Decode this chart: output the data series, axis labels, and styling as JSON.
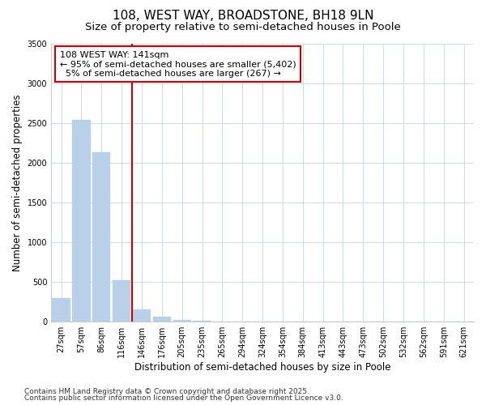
{
  "title1": "108, WEST WAY, BROADSTONE, BH18 9LN",
  "title2": "Size of property relative to semi-detached houses in Poole",
  "xlabel": "Distribution of semi-detached houses by size in Poole",
  "ylabel": "Number of semi-detached properties",
  "categories": [
    "27sqm",
    "57sqm",
    "86sqm",
    "116sqm",
    "146sqm",
    "176sqm",
    "205sqm",
    "235sqm",
    "265sqm",
    "294sqm",
    "324sqm",
    "354sqm",
    "384sqm",
    "413sqm",
    "443sqm",
    "473sqm",
    "502sqm",
    "532sqm",
    "562sqm",
    "591sqm",
    "621sqm"
  ],
  "values": [
    300,
    2540,
    2130,
    520,
    150,
    60,
    20,
    8,
    3,
    1,
    1,
    0,
    0,
    0,
    0,
    0,
    0,
    0,
    0,
    0,
    0
  ],
  "bar_color": "#b8d0e8",
  "bar_edgecolor": "#b8d0e8",
  "vline_x": 3.5,
  "vline_color": "#cc0000",
  "annotation_line1": "108 WEST WAY: 141sqm",
  "annotation_line2": "← 95% of semi-detached houses are smaller (5,402)",
  "annotation_line3": "  5% of semi-detached houses are larger (267) →",
  "annotation_box_color": "#cc0000",
  "ylim": [
    0,
    3500
  ],
  "yticks": [
    0,
    500,
    1000,
    1500,
    2000,
    2500,
    3000,
    3500
  ],
  "background_color": "#ffffff",
  "plot_bg_color": "#ffffff",
  "grid_color": "#d0dce8",
  "footer_line1": "Contains HM Land Registry data © Crown copyright and database right 2025.",
  "footer_line2": "Contains public sector information licensed under the Open Government Licence v3.0.",
  "title_fontsize": 11,
  "subtitle_fontsize": 9.5,
  "axis_label_fontsize": 8.5,
  "tick_fontsize": 7,
  "annotation_fontsize": 8,
  "footer_fontsize": 6.5
}
